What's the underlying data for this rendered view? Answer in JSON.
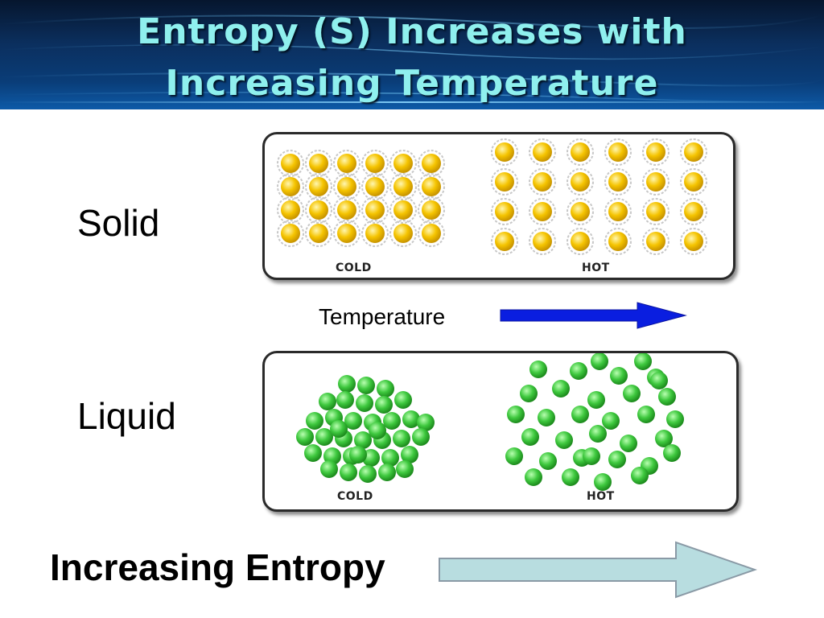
{
  "title": {
    "line1": "Entropy (S) Increases with",
    "line2": "Increasing Temperature"
  },
  "rows": {
    "solid_label": "Solid",
    "liquid_label": "Liquid"
  },
  "solid_panel": {
    "cold_label": "COLD",
    "hot_label": "HOT"
  },
  "liquid_panel": {
    "cold_label": "COLD",
    "hot_label": "HOT"
  },
  "temperature": {
    "label": "Temperature"
  },
  "entropy": {
    "label": "Increasing Entropy"
  },
  "colors": {
    "title_text": "#8ff0ee",
    "solid_particle": "#f5c400",
    "liquid_particle": "#3ec83e",
    "temperature_arrow": "#0a1ee0",
    "entropy_arrow": "#b8dde0"
  }
}
